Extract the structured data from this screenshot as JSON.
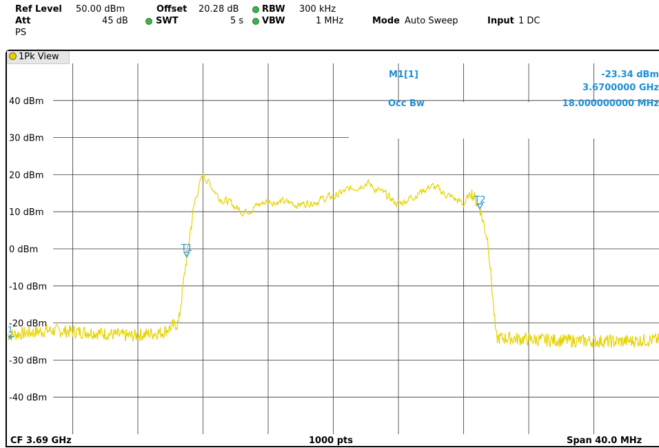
{
  "header": {
    "ref_level_label": "Ref Level",
    "ref_level_value": "50.00 dBm",
    "offset_label": "Offset",
    "offset_value": "20.28 dB",
    "rbw_label": "RBW",
    "rbw_value": "300 kHz",
    "att_label": "Att",
    "att_value": "45 dB",
    "swt_label": "SWT",
    "swt_value": "5 s",
    "vbw_label": "VBW",
    "vbw_value": "1 MHz",
    "mode_label": "Mode",
    "mode_value": "Auto Sweep",
    "input_label": "Input",
    "input_value": "1 DC",
    "ps_label": "PS",
    "indicator_color": "#3fb24a"
  },
  "view": {
    "title": "1Pk View",
    "trace_color": "#e6d300",
    "marker_color": "#1b8fd6"
  },
  "markers": {
    "m1_label": "M1[1]",
    "m1_level": "-23.34 dBm",
    "m1_freq": "3.6700000 GHz",
    "occbw_label": "Occ Bw",
    "occbw_value": "18.000000000 MHz",
    "t1_label": "T1",
    "t2_label": "T2",
    "ref_marker_label": "1"
  },
  "footer": {
    "cf": "CF 3.69 GHz",
    "points": "1000 pts",
    "span": "Span 40.0 MHz"
  },
  "chart_data": {
    "type": "line",
    "xlim": [
      3.67,
      3.71
    ],
    "x_unit": "GHz",
    "ylim": [
      -50,
      50
    ],
    "y_unit": "dBm",
    "y_ticks": [
      40,
      30,
      20,
      10,
      0,
      -10,
      -20,
      -30,
      -40
    ],
    "y_tick_labels": [
      "40 dBm",
      "30 dBm",
      "20 dBm",
      "10 dBm",
      "0 dBm",
      "-10 dBm",
      "-20 dBm",
      "-30 dBm",
      "-40 dBm"
    ],
    "grid": true,
    "series": [
      {
        "x": [
          3.67,
          3.6725,
          3.675,
          3.6775,
          3.6795,
          3.6805,
          3.681,
          3.6815,
          3.682,
          3.683,
          3.6845,
          3.686,
          3.688,
          3.69,
          3.692,
          3.694,
          3.696,
          3.698,
          3.6985,
          3.699,
          3.6995,
          3.7,
          3.7025,
          3.705,
          3.7075,
          3.71
        ],
        "values": [
          -23.34,
          -22,
          -22.5,
          -23.5,
          -22.5,
          -20,
          -2,
          13,
          20,
          14,
          10,
          13,
          12,
          14,
          18,
          12,
          17,
          12,
          15,
          11,
          2,
          -24,
          -24.5,
          -24.8,
          -25,
          -24.5
        ]
      }
    ],
    "occupied_bw": {
      "start": 3.681,
      "stop": 3.699
    }
  }
}
